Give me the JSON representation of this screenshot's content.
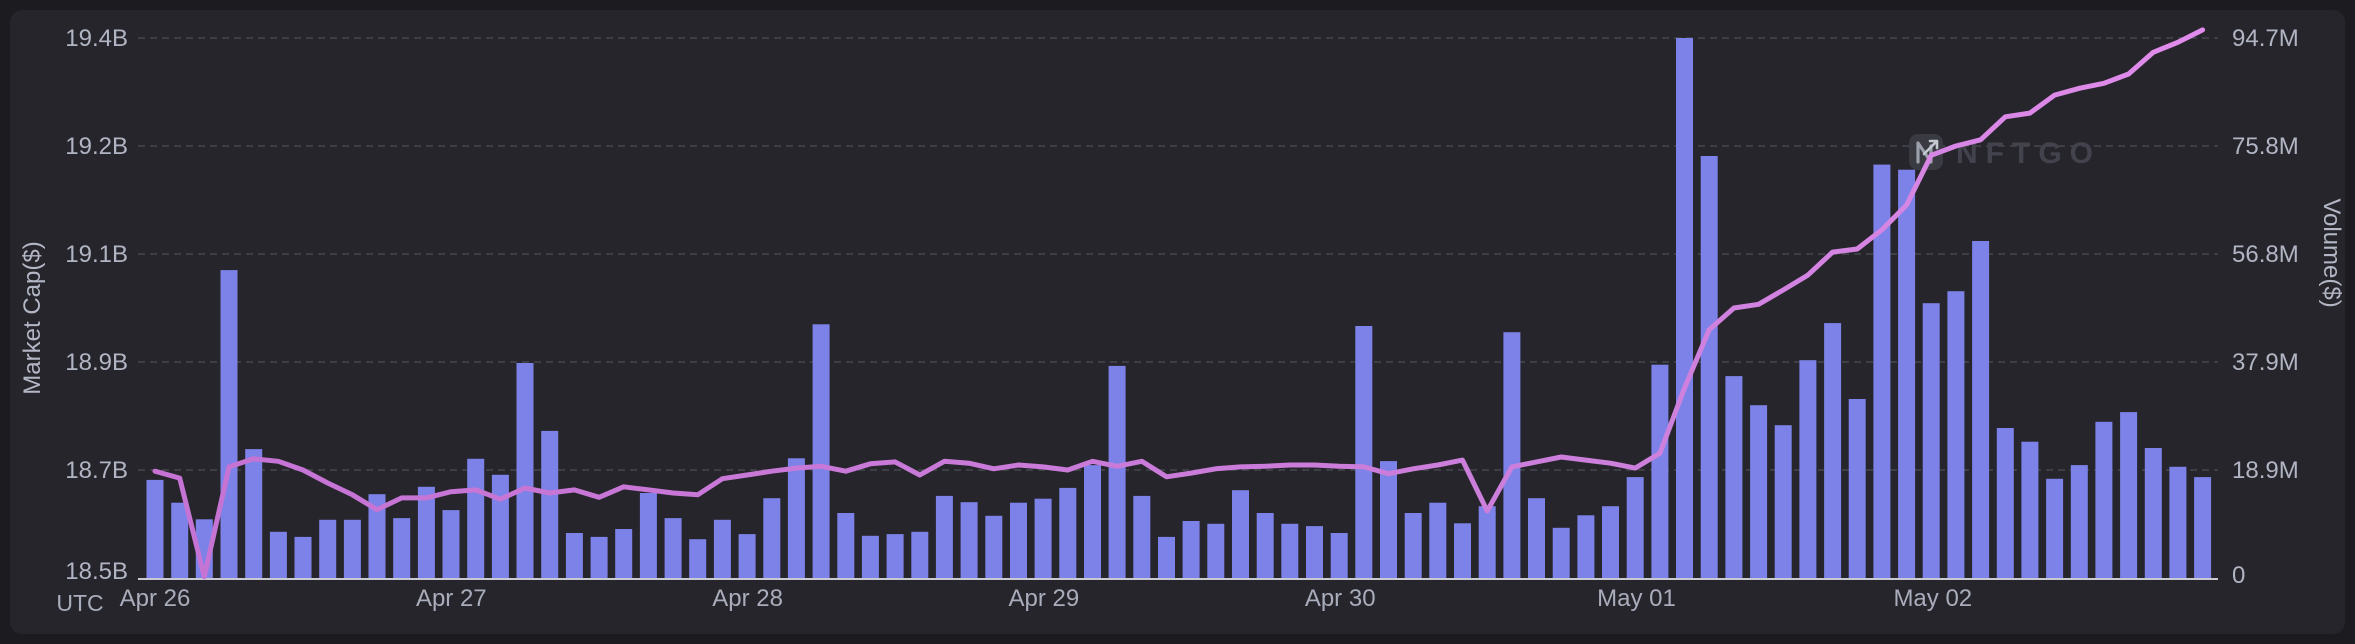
{
  "axes": {
    "left": {
      "title": "Market Cap($)",
      "ticks": [
        "19.4B",
        "19.2B",
        "19.1B",
        "18.9B",
        "18.7B",
        "18.5B"
      ]
    },
    "right": {
      "title": "Volume($)",
      "ticks": [
        "94.7M",
        "75.8M",
        "56.8M",
        "37.9M",
        "18.9M",
        "0"
      ]
    },
    "x": {
      "utc_label": "UTC",
      "dates": [
        "Apr 26",
        "Apr 27",
        "Apr 28",
        "Apr 29",
        "Apr 30",
        "May 01",
        "May 02"
      ]
    }
  },
  "watermark": {
    "brand": "NFTGO",
    "icon": "nftgo-arrow-n-logo"
  },
  "colors": {
    "page_bg": "#1b1b20",
    "panel_bg": "#26252c",
    "bar_fill": "#7d82e8",
    "line_start": "#c573d4",
    "line_end": "#e18cec",
    "gridline": "#47484f",
    "axis_line": "#c9cad1",
    "tick_text": "#b1b5c3",
    "watermark_text": "#42434c",
    "watermark_icon_bg": "#3a3b42",
    "watermark_icon_glyph": "#9aa0ac"
  },
  "chart_data": {
    "type": "bar",
    "title": "",
    "xlabel": "UTC",
    "ylabel_left": "Market Cap($)",
    "ylabel_right": "Volume($)",
    "grid": "dashed-horizontal",
    "legend": "none",
    "categories": [
      "Apr 26",
      "Apr 27",
      "Apr 28",
      "Apr 29",
      "Apr 30",
      "May 01",
      "May 02"
    ],
    "bars_per_day": 12,
    "x_interval_hours": 2,
    "left_axis_ticks": [
      "19.4B",
      "19.2B",
      "19.1B",
      "18.9B",
      "18.7B",
      "18.5B"
    ],
    "right_axis_ticks": [
      "94.7M",
      "75.8M",
      "56.8M",
      "37.9M",
      "18.9M",
      "0"
    ],
    "left_axis_range_b": [
      18.53,
      19.4
    ],
    "right_axis_range_m": [
      0,
      94.7
    ],
    "series": [
      {
        "name": "Volume($)",
        "type": "bar",
        "unit": "M USD",
        "axis": "right",
        "values": [
          17.2,
          13.2,
          10.3,
          54.0,
          22.6,
          8.1,
          7.2,
          10.2,
          10.2,
          14.7,
          10.5,
          16.0,
          11.9,
          20.9,
          18.1,
          37.7,
          25.8,
          7.9,
          7.2,
          8.6,
          14.9,
          10.5,
          6.8,
          10.2,
          7.7,
          14.0,
          21.0,
          44.5,
          11.4,
          7.4,
          7.7,
          8.1,
          14.4,
          13.3,
          10.9,
          13.2,
          13.9,
          15.8,
          19.8,
          37.2,
          14.4,
          7.2,
          10.0,
          9.5,
          15.4,
          11.4,
          9.5,
          9.1,
          7.9,
          44.2,
          20.5,
          11.4,
          13.2,
          9.6,
          12.6,
          43.1,
          14.0,
          8.8,
          11.0,
          12.6,
          17.7,
          37.4,
          94.7,
          74.0,
          35.4,
          30.3,
          26.8,
          38.2,
          44.7,
          31.4,
          72.5,
          71.6,
          48.2,
          50.3,
          59.1,
          26.3,
          23.9,
          17.4,
          19.8,
          27.4,
          29.1,
          22.8,
          19.5,
          17.7
        ]
      },
      {
        "name": "Market Cap($)",
        "type": "line",
        "unit": "B USD",
        "axis": "left",
        "values": [
          18.702,
          18.691,
          18.532,
          18.709,
          18.722,
          18.718,
          18.704,
          18.683,
          18.664,
          18.64,
          18.659,
          18.659,
          18.669,
          18.672,
          18.657,
          18.675,
          18.667,
          18.672,
          18.66,
          18.677,
          18.672,
          18.667,
          18.664,
          18.69,
          18.696,
          18.702,
          18.707,
          18.71,
          18.702,
          18.714,
          18.717,
          18.696,
          18.718,
          18.715,
          18.706,
          18.712,
          18.709,
          18.704,
          18.718,
          18.71,
          18.718,
          18.693,
          18.699,
          18.706,
          18.709,
          18.71,
          18.712,
          18.712,
          18.71,
          18.709,
          18.698,
          18.706,
          18.712,
          18.72,
          18.638,
          18.709,
          18.717,
          18.725,
          18.72,
          18.715,
          18.707,
          18.731,
          18.836,
          18.93,
          18.965,
          18.971,
          18.994,
          19.018,
          19.055,
          19.06,
          19.091,
          19.131,
          19.211,
          19.226,
          19.236,
          19.273,
          19.279,
          19.308,
          19.319,
          19.327,
          19.342,
          19.377,
          19.393,
          19.413
        ]
      }
    ]
  }
}
